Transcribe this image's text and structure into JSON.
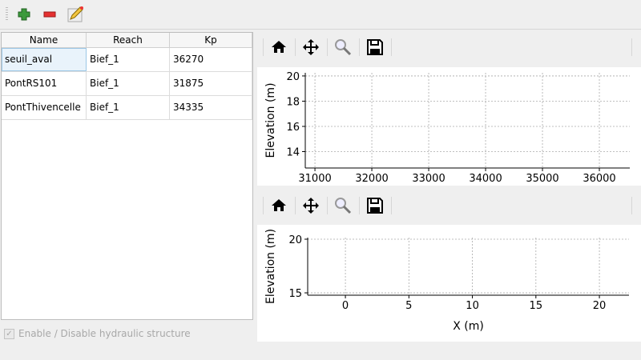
{
  "toolbar": {
    "buttons": [
      {
        "name": "add",
        "icon": "plus-icon"
      },
      {
        "name": "remove",
        "icon": "minus-icon"
      },
      {
        "name": "edit",
        "icon": "edit-icon"
      }
    ]
  },
  "table": {
    "headers": [
      "Name",
      "Reach",
      "Kp"
    ],
    "rows": [
      [
        "seuil_aval",
        "Bief_1",
        "36270"
      ],
      [
        "PontRS101",
        "Bief_1",
        "31875"
      ],
      [
        "PontThivencelle",
        "Bief_1",
        "34335"
      ]
    ],
    "selected_row": 0
  },
  "checkbox": {
    "label": "Enable / Disable hydraulic structure",
    "checked": true,
    "enabled": false
  },
  "plot_toolbar": {
    "buttons": [
      {
        "name": "home",
        "icon": "home-icon"
      },
      {
        "name": "pan",
        "icon": "move-icon"
      },
      {
        "name": "zoom",
        "icon": "zoom-icon"
      },
      {
        "name": "save",
        "icon": "save-icon"
      }
    ]
  },
  "chart_data": [
    {
      "type": "line",
      "xlabel": "",
      "ylabel": "Elevation (m)",
      "xlim": [
        30830,
        36535
      ],
      "ylim": [
        12.7,
        20.25
      ],
      "xticks": [
        31000,
        32000,
        33000,
        34000,
        35000,
        36000
      ],
      "yticks": [
        14,
        16,
        18,
        20
      ],
      "grid": true,
      "series": []
    },
    {
      "type": "line",
      "xlabel": "X (m)",
      "ylabel": "Elevation (m)",
      "xlim": [
        -2.97,
        22.33
      ],
      "ylim": [
        14.78,
        20.15
      ],
      "xticks": [
        0,
        5,
        10,
        15,
        20
      ],
      "yticks": [
        15,
        20
      ],
      "grid": true,
      "series": []
    }
  ]
}
